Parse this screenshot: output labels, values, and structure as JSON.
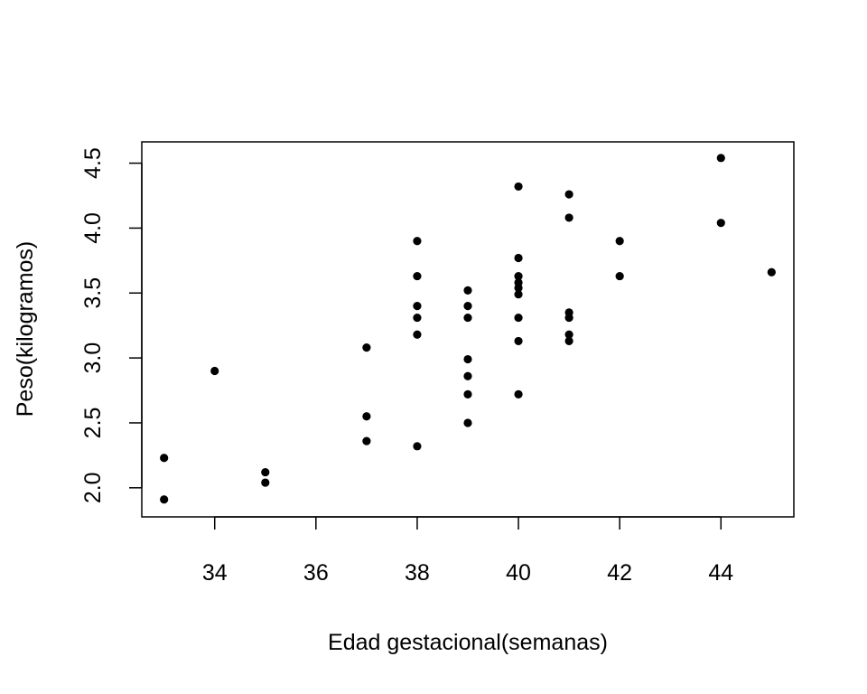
{
  "chart_data": {
    "type": "scatter",
    "title": "",
    "xlabel": "Edad gestacional(semanas)",
    "ylabel": "Peso(kilogramos)",
    "xlim": [
      32.56,
      45.44
    ],
    "ylim": [
      1.776,
      4.664
    ],
    "xticks": [
      34,
      36,
      38,
      40,
      42,
      44
    ],
    "yticks": [
      2.0,
      2.5,
      3.0,
      3.5,
      4.0,
      4.5
    ],
    "ytick_labels": [
      "2.0",
      "2.5",
      "3.0",
      "3.5",
      "4.0",
      "4.5"
    ],
    "grid": false,
    "legend": "none",
    "marker_color": "#000000",
    "points": [
      {
        "x": 33,
        "y": 2.23
      },
      {
        "x": 33,
        "y": 1.91
      },
      {
        "x": 34,
        "y": 2.9
      },
      {
        "x": 35,
        "y": 2.12
      },
      {
        "x": 35,
        "y": 2.04
      },
      {
        "x": 37,
        "y": 3.08
      },
      {
        "x": 37,
        "y": 2.55
      },
      {
        "x": 37,
        "y": 2.36
      },
      {
        "x": 38,
        "y": 3.9
      },
      {
        "x": 38,
        "y": 3.63
      },
      {
        "x": 38,
        "y": 3.4
      },
      {
        "x": 38,
        "y": 3.31
      },
      {
        "x": 38,
        "y": 3.18
      },
      {
        "x": 38,
        "y": 2.32
      },
      {
        "x": 39,
        "y": 3.52
      },
      {
        "x": 39,
        "y": 3.4
      },
      {
        "x": 39,
        "y": 3.31
      },
      {
        "x": 39,
        "y": 2.99
      },
      {
        "x": 39,
        "y": 2.86
      },
      {
        "x": 39,
        "y": 2.72
      },
      {
        "x": 39,
        "y": 2.5
      },
      {
        "x": 40,
        "y": 4.32
      },
      {
        "x": 40,
        "y": 3.77
      },
      {
        "x": 40,
        "y": 3.63
      },
      {
        "x": 40,
        "y": 3.58
      },
      {
        "x": 40,
        "y": 3.54
      },
      {
        "x": 40,
        "y": 3.49
      },
      {
        "x": 40,
        "y": 3.31
      },
      {
        "x": 40,
        "y": 3.13
      },
      {
        "x": 40,
        "y": 2.72
      },
      {
        "x": 41,
        "y": 4.26
      },
      {
        "x": 41,
        "y": 4.08
      },
      {
        "x": 41,
        "y": 3.35
      },
      {
        "x": 41,
        "y": 3.31
      },
      {
        "x": 41,
        "y": 3.18
      },
      {
        "x": 41,
        "y": 3.13
      },
      {
        "x": 42,
        "y": 3.9
      },
      {
        "x": 42,
        "y": 3.63
      },
      {
        "x": 44,
        "y": 4.54
      },
      {
        "x": 44,
        "y": 4.04
      },
      {
        "x": 45,
        "y": 3.66
      }
    ]
  }
}
